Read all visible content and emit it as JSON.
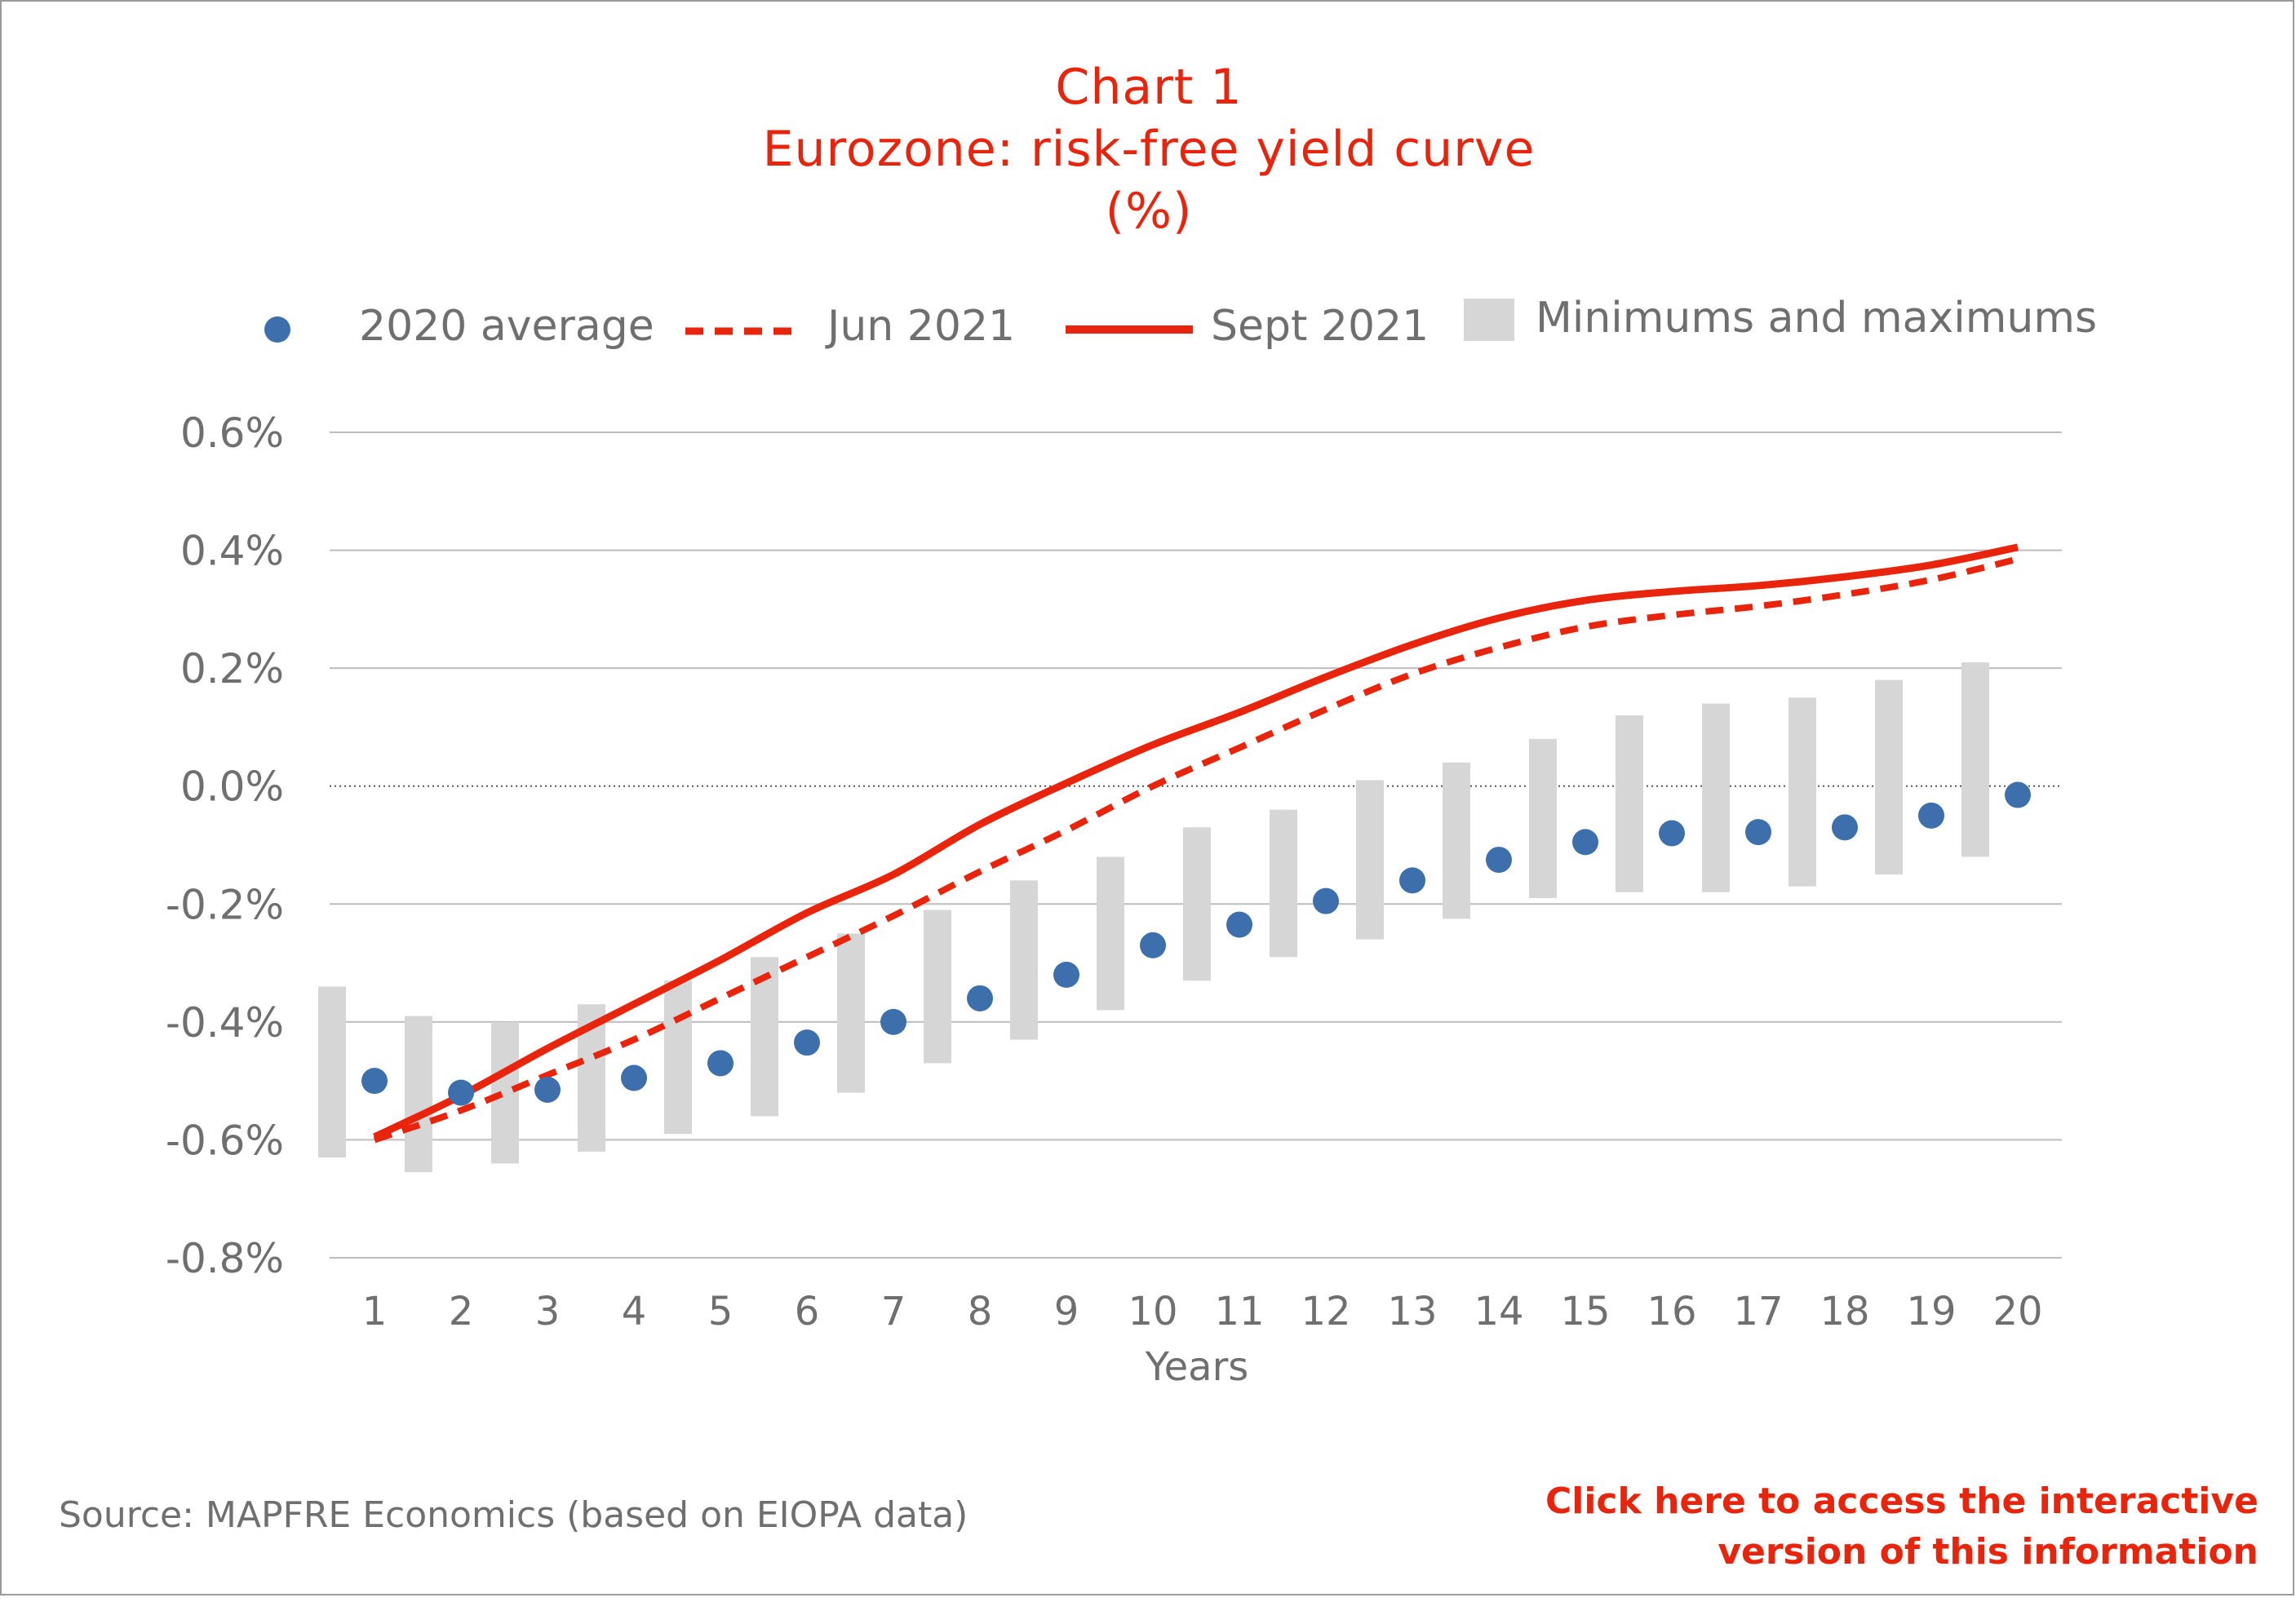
{
  "title": {
    "line1": "Chart 1",
    "line2": "Eurozone: risk-free yield curve",
    "line3": "(%)"
  },
  "legend": {
    "avg2020": "2020 average",
    "jun2021": "Jun 2021",
    "sept2021": "Sept 2021",
    "minmax": "Minimums and maximums"
  },
  "source": "Source: MAPFRE Economics (based on EIOPA data)",
  "link": {
    "line1": "Click here to access the interactive",
    "line2": "version of this information"
  },
  "colors": {
    "accent": "#e8240c",
    "dots": "#3c6fab",
    "range": "#d6d6d6",
    "grid": "#bdbdbd",
    "text": "#6f6f6f"
  },
  "chart_data": {
    "type": "line",
    "xlabel": "Years",
    "ylabel": "",
    "categories": [
      "1",
      "2",
      "3",
      "4",
      "5",
      "6",
      "7",
      "8",
      "9",
      "10",
      "11",
      "12",
      "13",
      "14",
      "15",
      "16",
      "17",
      "18",
      "19",
      "20"
    ],
    "yticks": [
      "0.6%",
      "0.4%",
      "0.2%",
      "0.0%",
      "-0.2%",
      "-0.4%",
      "-0.6%",
      "-0.8%"
    ],
    "ytick_values": [
      0.6,
      0.4,
      0.2,
      0.0,
      -0.2,
      -0.4,
      -0.6,
      -0.8
    ],
    "ylim": [
      -0.8,
      0.6
    ],
    "grid": true,
    "legend_position": "top",
    "series": [
      {
        "name": "2020 average",
        "style": "dots",
        "values": [
          -0.5,
          -0.52,
          -0.515,
          -0.495,
          -0.47,
          -0.435,
          -0.4,
          -0.36,
          -0.32,
          -0.27,
          -0.235,
          -0.195,
          -0.16,
          -0.125,
          -0.095,
          -0.08,
          -0.078,
          -0.07,
          -0.05,
          -0.015
        ]
      },
      {
        "name": "Jun 2021",
        "style": "dashed",
        "values": [
          -0.6,
          -0.55,
          -0.49,
          -0.43,
          -0.36,
          -0.29,
          -0.22,
          -0.145,
          -0.075,
          0.0,
          0.065,
          0.13,
          0.19,
          0.235,
          0.27,
          0.29,
          0.305,
          0.325,
          0.35,
          0.385
        ]
      },
      {
        "name": "Sept 2021",
        "style": "solid",
        "values": [
          -0.595,
          -0.525,
          -0.445,
          -0.37,
          -0.295,
          -0.215,
          -0.15,
          -0.065,
          0.005,
          0.07,
          0.125,
          0.185,
          0.24,
          0.285,
          0.315,
          0.33,
          0.34,
          0.355,
          0.375,
          0.405
        ]
      },
      {
        "name": "Minimums and maximums",
        "style": "range",
        "min": [
          -0.63,
          -0.655,
          -0.64,
          -0.62,
          -0.59,
          -0.56,
          -0.52,
          -0.47,
          -0.43,
          -0.38,
          -0.33,
          -0.29,
          -0.26,
          -0.225,
          -0.19,
          -0.18,
          -0.18,
          -0.17,
          -0.15,
          -0.12
        ],
        "max": [
          -0.34,
          -0.39,
          -0.4,
          -0.37,
          -0.33,
          -0.29,
          -0.25,
          -0.21,
          -0.16,
          -0.12,
          -0.07,
          -0.04,
          0.01,
          0.04,
          0.08,
          0.12,
          0.14,
          0.15,
          0.18,
          0.21
        ]
      }
    ]
  }
}
